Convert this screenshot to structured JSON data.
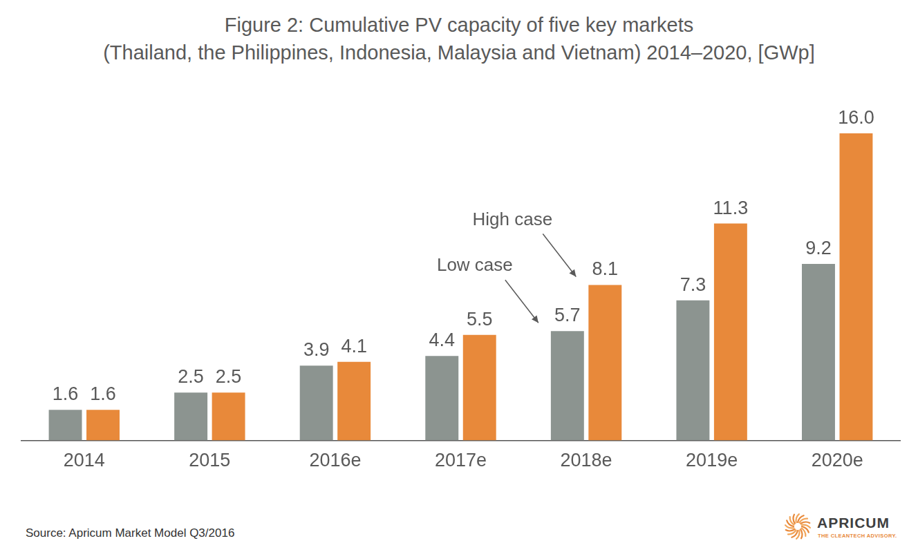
{
  "chart_data": {
    "type": "bar",
    "title": [
      "Figure 2: Cumulative PV capacity of five key markets",
      "(Thailand, the Philippines, Indonesia, Malaysia and Vietnam) 2014–2020, [GWp]"
    ],
    "categories": [
      "2014",
      "2015",
      "2016e",
      "2017e",
      "2018e",
      "2019e",
      "2020e"
    ],
    "series": [
      {
        "name": "Low case",
        "color": "#8c9490",
        "values": [
          1.6,
          2.5,
          3.9,
          4.4,
          5.7,
          7.3,
          9.2
        ]
      },
      {
        "name": "High case",
        "color": "#e8893a",
        "values": [
          1.6,
          2.5,
          4.1,
          5.5,
          8.1,
          11.3,
          16.0
        ],
        "value_labels": [
          "1.6",
          "2.5",
          "4.1",
          "5.5",
          "8.1",
          "11.3",
          "16.0"
        ]
      }
    ],
    "ylim": [
      0,
      16
    ],
    "grid": false,
    "tick_labels": "x",
    "data_labels": true,
    "annotations": [
      {
        "text": "Low case",
        "category": "2018e"
      },
      {
        "text": "High case",
        "category": "2018e"
      }
    ],
    "source": "Source: Apricum Market Model Q3/2016",
    "logo": {
      "name": "APRICUM",
      "tagline": "THE CLEANTECH ADVISORY."
    }
  }
}
